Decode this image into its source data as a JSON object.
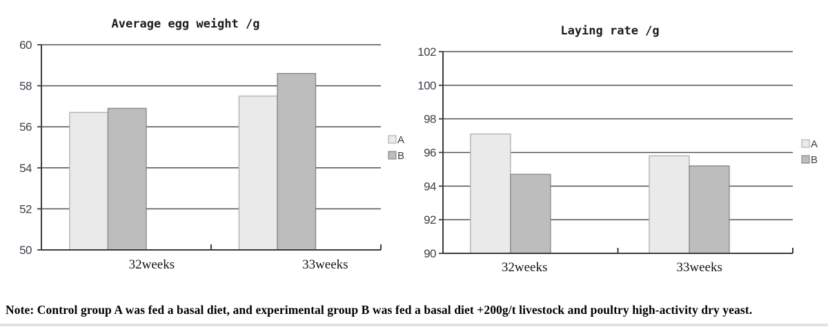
{
  "page": {
    "background": "#ffffff"
  },
  "note": {
    "text": "Note: Control group A was fed a basal diet, and experimental group B was fed a basal diet +200g/t livestock and poultry high-activity dry yeast."
  },
  "colors": {
    "series_a_fill": "#eaeaea",
    "series_a_stroke": "#b2b2b2",
    "series_b_fill": "#bdbdbd",
    "series_b_stroke": "#8a8a8a",
    "gridline": "#4f4f4f",
    "axis": "#3a3a3a",
    "y_tick_label": "#3d3d49",
    "x_category_label": "#111111",
    "title_text": "#1a1a1a",
    "legend_text": "#3d3d49"
  },
  "chart_data": [
    {
      "type": "bar",
      "title": "Average egg weight /g",
      "categories": [
        "32weeks",
        "33weeks"
      ],
      "series": [
        {
          "name": "A",
          "values": [
            56.7,
            57.5
          ],
          "fill": "#eaeaea",
          "stroke": "#b2b2b2"
        },
        {
          "name": "B",
          "values": [
            56.9,
            58.6
          ],
          "fill": "#bdbdbd",
          "stroke": "#8a8a8a"
        }
      ],
      "ylim": [
        50,
        60
      ],
      "yticks": [
        50,
        52,
        54,
        56,
        58,
        60
      ],
      "grid": true,
      "legend_position": "right",
      "legend_entries": [
        "A",
        "B"
      ]
    },
    {
      "type": "bar",
      "title": "Laying rate /g",
      "categories": [
        "32weeks",
        "33weeks"
      ],
      "series": [
        {
          "name": "A",
          "values": [
            97.1,
            95.8
          ],
          "fill": "#eaeaea",
          "stroke": "#b2b2b2"
        },
        {
          "name": "B",
          "values": [
            94.7,
            95.2
          ],
          "fill": "#bdbdbd",
          "stroke": "#8a8a8a"
        }
      ],
      "ylim": [
        90,
        102
      ],
      "yticks": [
        90,
        92,
        94,
        96,
        98,
        100,
        102
      ],
      "grid": true,
      "legend_position": "right",
      "legend_entries": [
        "A",
        "B"
      ]
    }
  ]
}
